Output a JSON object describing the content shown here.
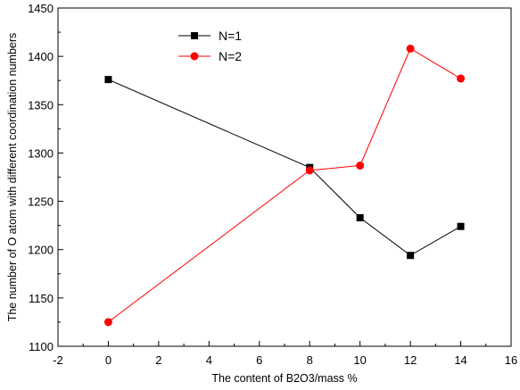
{
  "chart_data": {
    "type": "line",
    "title": "",
    "xlabel": "The content of B2O3/mass %",
    "ylabel": "The number of O atom with different coordination numbers",
    "xlim": [
      -2,
      16
    ],
    "ylim": [
      1100,
      1450
    ],
    "x_ticks": [
      -2,
      0,
      2,
      4,
      6,
      8,
      10,
      12,
      14,
      16
    ],
    "y_ticks": [
      1100,
      1150,
      1200,
      1250,
      1300,
      1350,
      1400,
      1450
    ],
    "grid": false,
    "legend_position": "top-left",
    "series": [
      {
        "name": "N=1",
        "color": "#000000",
        "marker": "square",
        "x": [
          0,
          8,
          10,
          12,
          14
        ],
        "y": [
          1376,
          1285,
          1233,
          1194,
          1224
        ]
      },
      {
        "name": "N=2",
        "color": "#ff0000",
        "marker": "circle",
        "x": [
          0,
          8,
          10,
          12,
          14
        ],
        "y": [
          1125,
          1282,
          1287,
          1408,
          1377
        ]
      }
    ]
  }
}
